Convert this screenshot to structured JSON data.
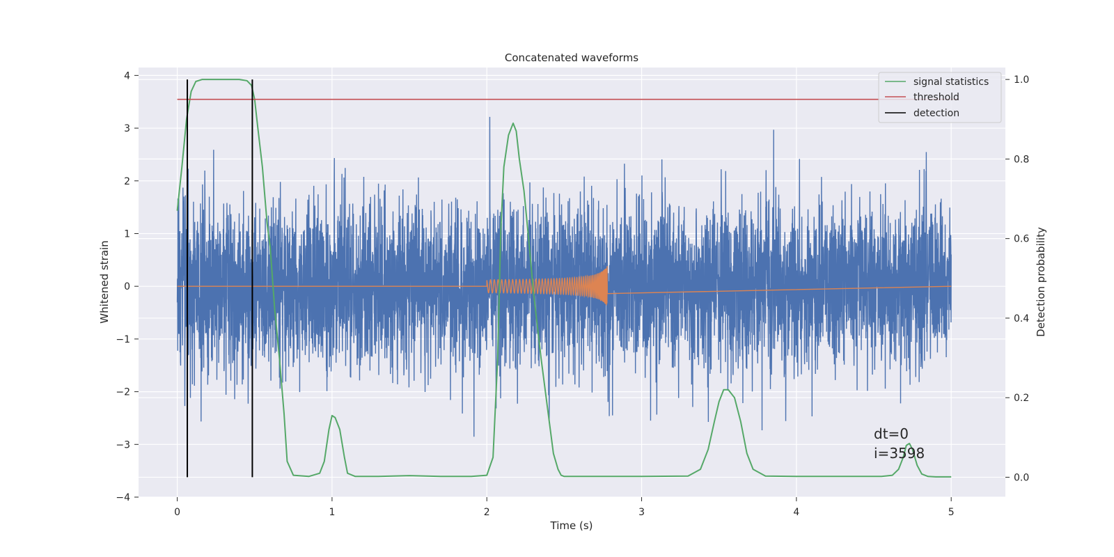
{
  "chart_data": {
    "type": "line",
    "title": "Concatenated waveforms",
    "xlabel": "Time (s)",
    "ylabel": "Whitened strain",
    "y2label": "Detection probability",
    "xlim": [
      -0.25,
      5.35
    ],
    "ylim": [
      -4,
      4.15
    ],
    "y2lim": [
      -0.05,
      1.03
    ],
    "xticks": [
      0,
      1,
      2,
      3,
      4,
      5
    ],
    "yticks": [
      -4,
      -3,
      -2,
      -1,
      0,
      1,
      2,
      3,
      4
    ],
    "y2ticks": [
      0.0,
      0.2,
      0.4,
      0.6,
      0.8,
      1.0
    ],
    "xtick_labels": [
      "0",
      "1",
      "2",
      "3",
      "4",
      "5"
    ],
    "ytick_labels": [
      "−4",
      "−3",
      "−2",
      "−1",
      "0",
      "1",
      "2",
      "3",
      "4"
    ],
    "y2tick_labels": [
      "0.0",
      "0.2",
      "0.4",
      "0.6",
      "0.8",
      "1.0"
    ],
    "grid": true,
    "legend_position": "top-right",
    "colors": {
      "strain": "#4c72b0",
      "injection": "#dd8452",
      "signal": "#55a868",
      "threshold": "#c44e52",
      "detection": "#000000",
      "background": "#eaeaf2",
      "grid": "#ffffff"
    },
    "series": [
      {
        "name": "signal statistics",
        "axis": "right",
        "x": [
          0.0,
          0.03,
          0.06,
          0.09,
          0.12,
          0.16,
          0.2,
          0.3,
          0.4,
          0.45,
          0.48,
          0.5,
          0.52,
          0.55,
          0.58,
          0.6,
          0.63,
          0.66,
          0.69,
          0.71,
          0.75,
          0.85,
          0.92,
          0.95,
          0.98,
          1.0,
          1.02,
          1.05,
          1.08,
          1.1,
          1.15,
          1.3,
          1.5,
          1.7,
          1.9,
          2.0,
          2.04,
          2.07,
          2.09,
          2.11,
          2.14,
          2.17,
          2.19,
          2.21,
          2.24,
          2.27,
          2.3,
          2.35,
          2.4,
          2.43,
          2.46,
          2.48,
          2.5,
          2.55,
          2.7,
          3.0,
          3.3,
          3.38,
          3.43,
          3.47,
          3.5,
          3.53,
          3.56,
          3.6,
          3.64,
          3.68,
          3.72,
          3.8,
          4.0,
          4.3,
          4.55,
          4.62,
          4.66,
          4.69,
          4.71,
          4.73,
          4.75,
          4.78,
          4.81,
          4.85,
          4.9,
          5.0
        ],
        "values": [
          0.67,
          0.78,
          0.9,
          0.97,
          0.995,
          1.0,
          1.0,
          1.0,
          1.0,
          0.997,
          0.985,
          0.95,
          0.88,
          0.78,
          0.64,
          0.58,
          0.42,
          0.3,
          0.16,
          0.04,
          0.005,
          0.002,
          0.01,
          0.04,
          0.12,
          0.155,
          0.15,
          0.12,
          0.05,
          0.01,
          0.002,
          0.002,
          0.004,
          0.002,
          0.002,
          0.005,
          0.05,
          0.3,
          0.62,
          0.78,
          0.86,
          0.89,
          0.87,
          0.8,
          0.72,
          0.6,
          0.47,
          0.3,
          0.15,
          0.06,
          0.02,
          0.005,
          0.002,
          0.002,
          0.002,
          0.002,
          0.003,
          0.02,
          0.07,
          0.14,
          0.19,
          0.22,
          0.22,
          0.2,
          0.14,
          0.06,
          0.02,
          0.003,
          0.002,
          0.002,
          0.002,
          0.005,
          0.02,
          0.05,
          0.08,
          0.085,
          0.07,
          0.03,
          0.008,
          0.002,
          0.001,
          0.001
        ]
      },
      {
        "name": "threshold",
        "axis": "right",
        "x": [
          0.0,
          5.05
        ],
        "values": [
          0.95,
          0.95
        ]
      },
      {
        "name": "detection",
        "axis": "right",
        "x": [
          0.065,
          0.485
        ],
        "range": [
          0.0,
          1.0
        ]
      }
    ],
    "annotations": [
      "dt=0",
      "i=3598"
    ]
  }
}
